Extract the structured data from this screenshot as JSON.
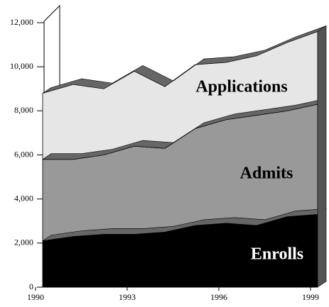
{
  "chart_data": {
    "type": "area",
    "x": [
      1990,
      1991,
      1992,
      1993,
      1994,
      1995,
      1996,
      1997,
      1998,
      1999
    ],
    "series": [
      {
        "name": "Enrolls",
        "color": "#000000",
        "values": [
          2100,
          2300,
          2400,
          2400,
          2500,
          2800,
          2900,
          2800,
          3200,
          3300
        ]
      },
      {
        "name": "Admits",
        "color": "#999999",
        "values": [
          3700,
          3500,
          3600,
          4000,
          3800,
          4400,
          4700,
          5000,
          4800,
          5000
        ]
      },
      {
        "name": "Applications",
        "color": "#e6e6e6",
        "values": [
          3000,
          3400,
          3000,
          3400,
          2800,
          2900,
          2600,
          2700,
          3100,
          3300
        ]
      }
    ],
    "stacked": true,
    "xlim": [
      1990,
      1999
    ],
    "xticks": [
      1990,
      1993,
      1996,
      1999
    ],
    "ylim": [
      0,
      12000
    ],
    "yticks": [
      0,
      {
        "value": 2000,
        "label": "2,000"
      },
      {
        "value": 4000,
        "label": "4,000"
      },
      {
        "value": 6000,
        "label": "6,000"
      },
      {
        "value": 8000,
        "label": "8,000"
      },
      {
        "value": 10000,
        "label": "10,000"
      },
      {
        "value": 12000,
        "label": "12,000"
      }
    ]
  }
}
